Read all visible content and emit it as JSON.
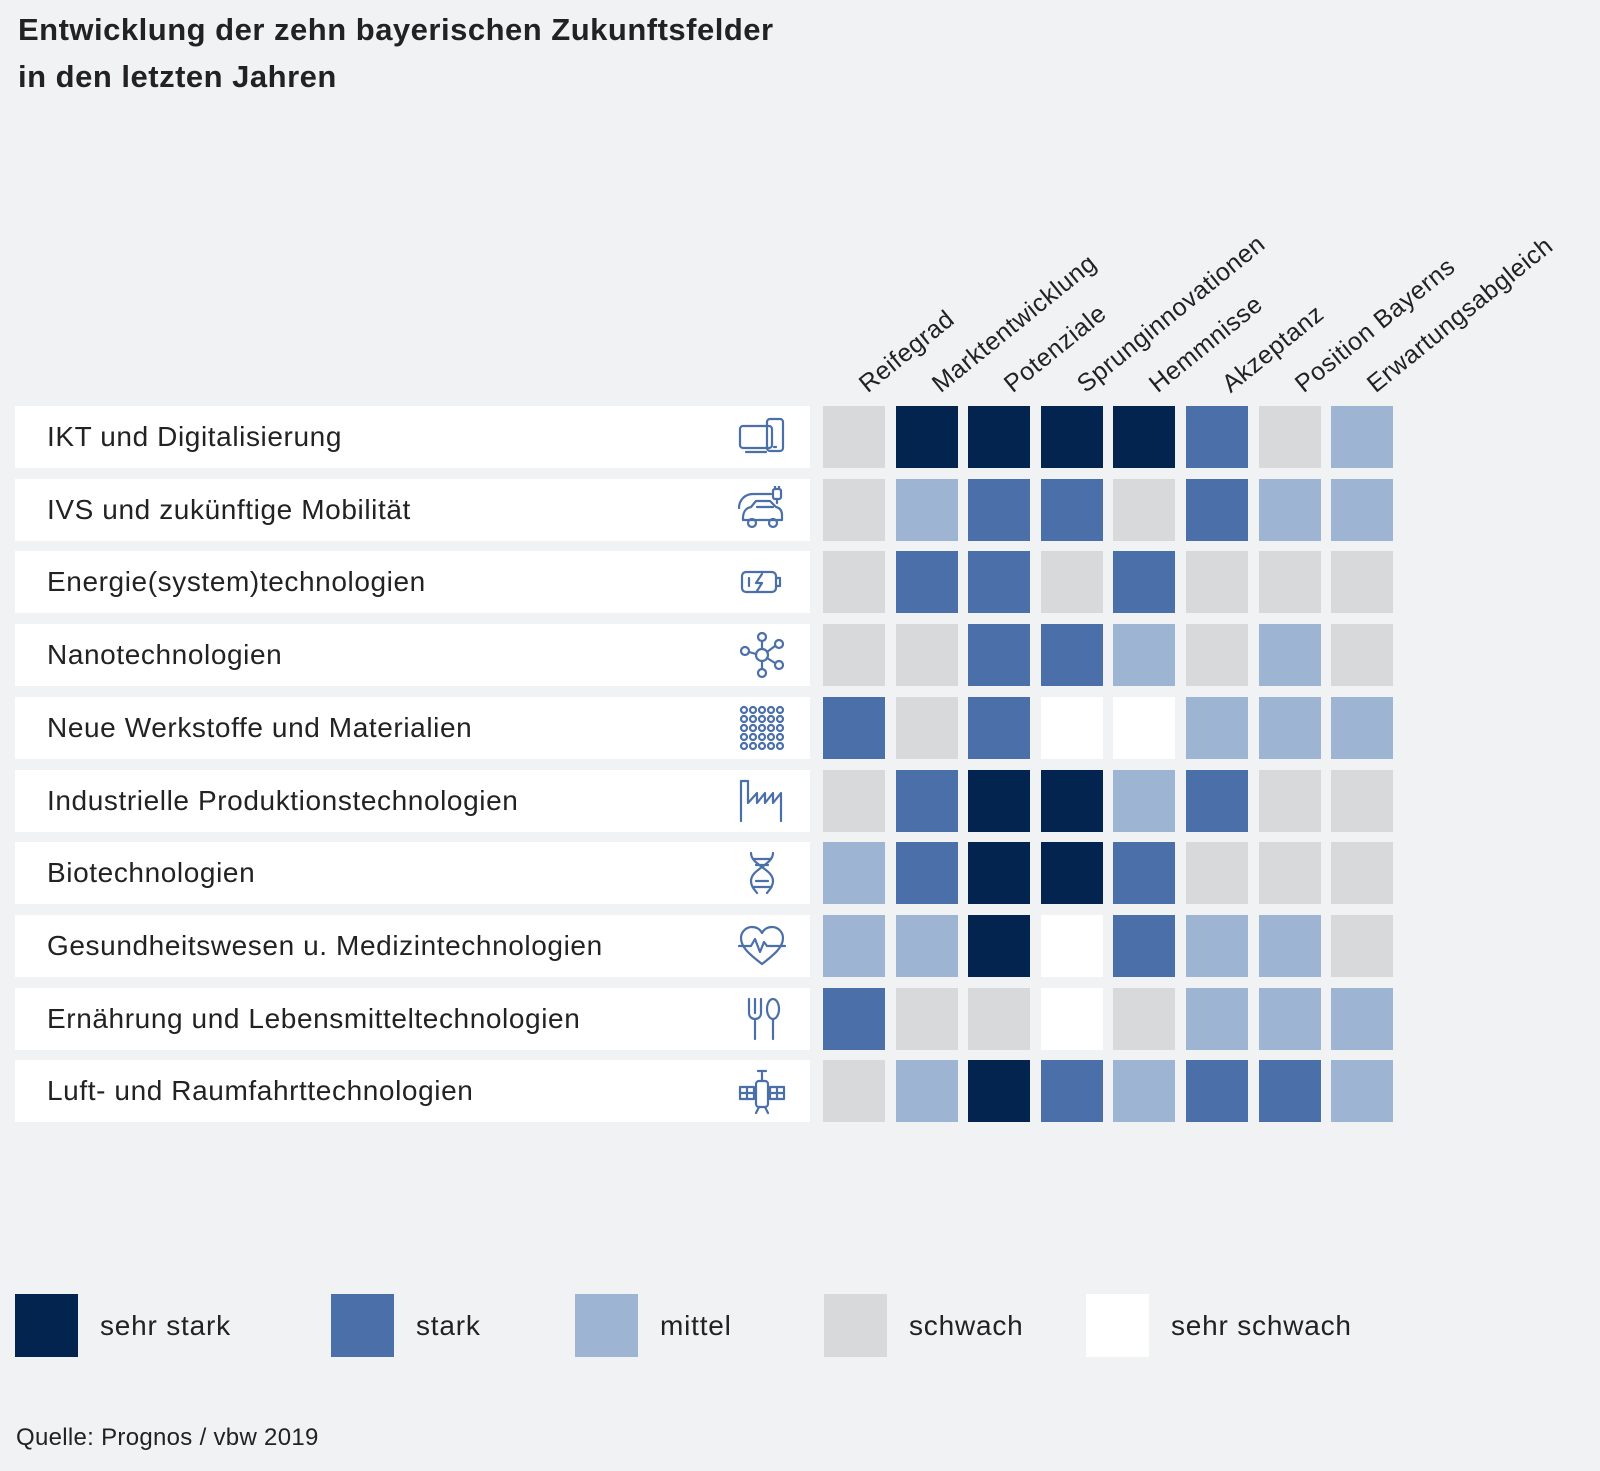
{
  "chart_data": {
    "type": "heatmap",
    "title": [
      "Entwicklung der zehn bayerischen Zukunftsfelder",
      "in den letzten Jahren"
    ],
    "columns": [
      "Reifegrad",
      "Marktentwicklung",
      "Potenziale",
      "Sprunginnovationen",
      "Hemmnisse",
      "Akzeptanz",
      "Position Bayerns",
      "Erwartungsabgleich"
    ],
    "rows": [
      {
        "label": "IKT und Digitalisierung",
        "icon": "devices-icon",
        "levels": [
          4,
          1,
          1,
          1,
          1,
          2,
          4,
          3
        ]
      },
      {
        "label": "IVS und zukünftige Mobilität",
        "icon": "electric-car-icon",
        "levels": [
          4,
          3,
          2,
          2,
          4,
          2,
          3,
          3
        ]
      },
      {
        "label": "Energie(system)technologien",
        "icon": "battery-icon",
        "levels": [
          4,
          2,
          2,
          4,
          2,
          4,
          4,
          4
        ]
      },
      {
        "label": "Nanotechnologien",
        "icon": "molecule-icon",
        "levels": [
          4,
          4,
          2,
          2,
          3,
          4,
          3,
          4
        ]
      },
      {
        "label": "Neue Werkstoffe und Materialien",
        "icon": "dot-grid-icon",
        "levels": [
          2,
          4,
          2,
          5,
          5,
          3,
          3,
          3
        ]
      },
      {
        "label": "Industrielle Produktionstechnologien",
        "icon": "factory-icon",
        "levels": [
          4,
          2,
          1,
          1,
          3,
          2,
          4,
          4
        ]
      },
      {
        "label": "Biotechnologien",
        "icon": "dna-icon",
        "levels": [
          3,
          2,
          1,
          1,
          2,
          4,
          4,
          4
        ]
      },
      {
        "label": "Gesundheitswesen u. Medizintechnologien",
        "icon": "heart-pulse-icon",
        "levels": [
          3,
          3,
          1,
          5,
          2,
          3,
          3,
          4
        ]
      },
      {
        "label": "Ernährung und Lebensmitteltechnologien",
        "icon": "fork-spoon-icon",
        "levels": [
          2,
          4,
          4,
          5,
          4,
          3,
          3,
          3
        ]
      },
      {
        "label": "Luft- und Raumfahrttechnologien",
        "icon": "satellite-icon",
        "levels": [
          4,
          3,
          1,
          2,
          3,
          2,
          2,
          3
        ]
      }
    ],
    "legend": [
      {
        "level": 1,
        "label": "sehr stark",
        "color": "#03244f"
      },
      {
        "level": 2,
        "label": "stark",
        "color": "#4a6fa9"
      },
      {
        "level": 3,
        "label": "mittel",
        "color": "#9db4d2"
      },
      {
        "level": 4,
        "label": "schwach",
        "color": "#d8d9da"
      },
      {
        "level": 5,
        "label": "sehr schwach",
        "color": "#ffffff"
      }
    ]
  },
  "source": "Quelle: Prognos / vbw 2019"
}
